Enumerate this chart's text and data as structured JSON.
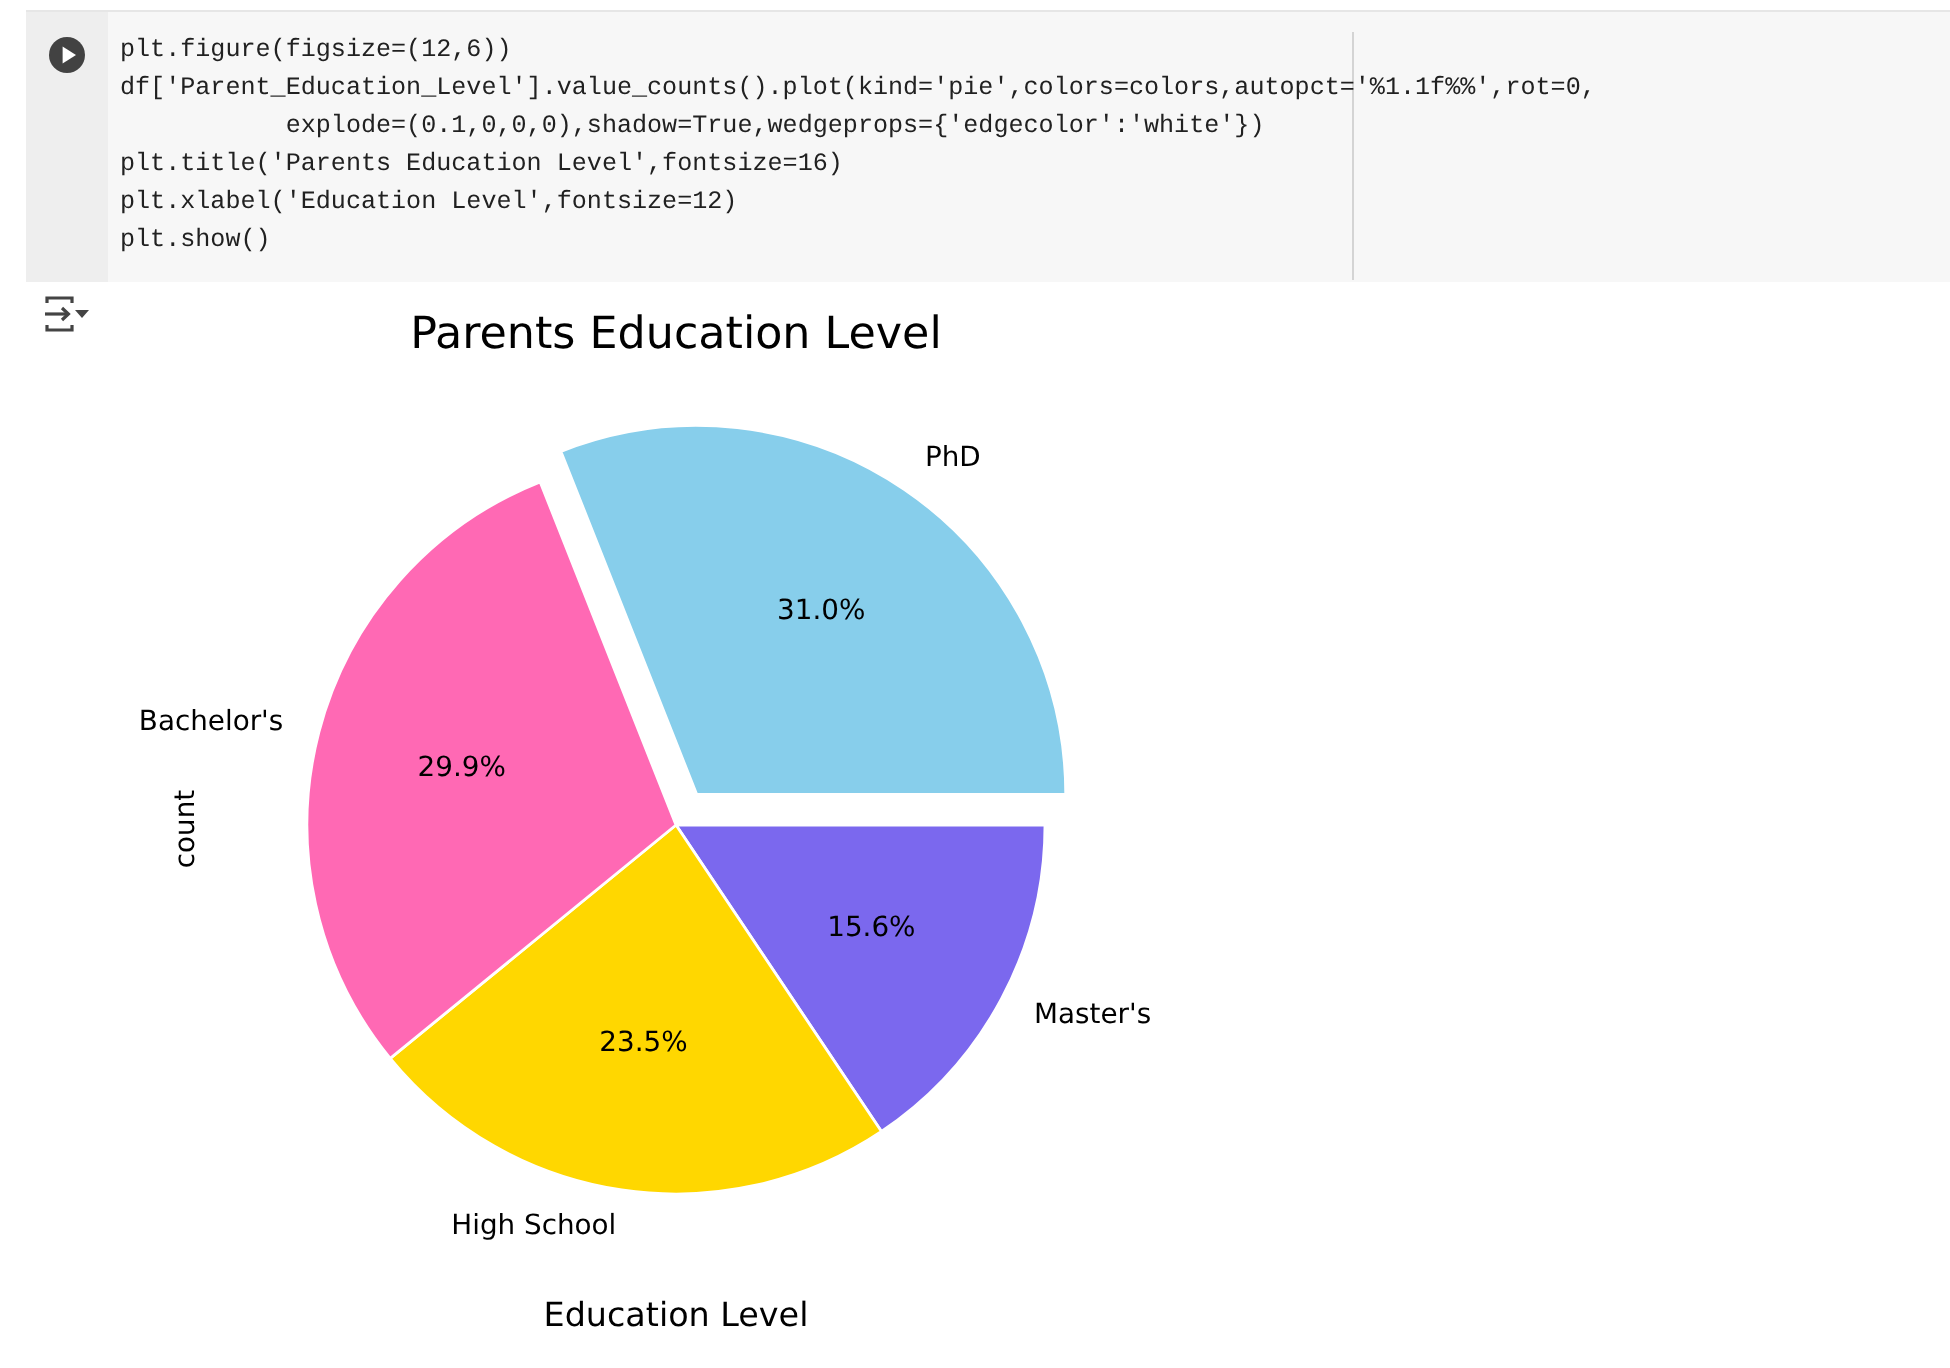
{
  "chart_data": {
    "type": "pie",
    "title": "Parents Education Level",
    "xlabel": "Education Level",
    "ylabel": "count",
    "categories": [
      "PhD",
      "Master's",
      "High School",
      "Bachelor's"
    ],
    "values": [
      31.0,
      15.6,
      23.5,
      29.9
    ],
    "colors": [
      "#87ceeb",
      "#7b68ee",
      "#ffd700",
      "#ff69b4"
    ],
    "value_labels": [
      "31.0%",
      "15.6%",
      "23.5%",
      "29.9%"
    ],
    "annotations": [
      "plt.figure(figsize=(12,6))",
      "df['Parent_Education_Level'].value_counts().plot(kind='pie',colors=colors,autopct='%1.1f%%',rot=0,",
      "           explode=(0.1,0,0,0),shadow=True,wedgeprops={'edgecolor':'white'})",
      "plt.title('Parents Education Level',fontsize=16)",
      "plt.xlabel('Education Level',fontsize=12)",
      "plt.show()"
    ]
  }
}
